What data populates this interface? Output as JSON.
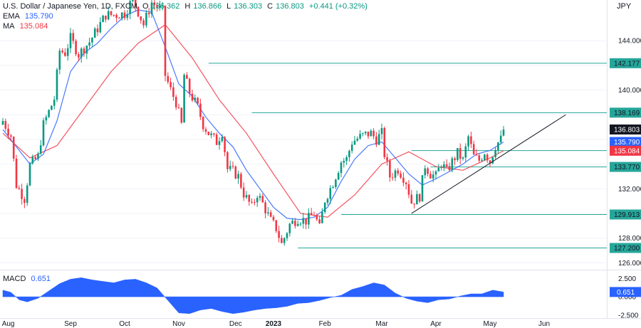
{
  "header": {
    "symbol": "U.S. Dollar / Japanese Yen, 1D, FXCM",
    "ohlc": [
      {
        "k": "O",
        "v": "136.362"
      },
      {
        "k": "H",
        "v": "136.866"
      },
      {
        "k": "L",
        "v": "136.303"
      },
      {
        "k": "C",
        "v": "136.803"
      }
    ],
    "change": "+0.441 (+0.32%)",
    "ema_label": "EMA",
    "ema_value": "135.790",
    "ma_label": "MA",
    "ma_value": "135.084",
    "macd_label": "MACD",
    "macd_value": "0.651",
    "currency": "JPY"
  },
  "colors": {
    "up": "#089981",
    "down": "#f23645",
    "ema": "#2962ff",
    "ma": "#f23645",
    "level": "#26a69a",
    "trend": "#131722",
    "macd": "#2962ff",
    "last": "#131722"
  },
  "chart_data": {
    "type": "candlestick",
    "title": "U.S. Dollar / Japanese Yen, 1D, FXCM",
    "ylim": [
      125.5,
      147.3
    ],
    "yticks": [
      "144.000",
      "142.000",
      "140.000",
      "138.000",
      "136.000",
      "134.000",
      "132.000",
      "130.000",
      "128.000",
      "126.000"
    ],
    "y_grid_labeled": [
      "144.000",
      "140.000",
      "132.000",
      "128.000",
      "126.000"
    ],
    "xticks": [
      "Aug",
      "Sep",
      "Oct",
      "Nov",
      "Dec",
      "2023",
      "Feb",
      "Mar",
      "Apr",
      "May",
      "Jun"
    ],
    "price_series": [
      [
        0,
        137.5
      ],
      [
        3,
        136.3
      ],
      [
        5,
        132.3
      ],
      [
        8,
        131.2
      ],
      [
        10,
        133.9
      ],
      [
        13,
        134.6
      ],
      [
        15,
        137.2
      ],
      [
        19,
        139.3
      ],
      [
        21,
        143.2
      ],
      [
        23,
        143.0
      ],
      [
        25,
        144.2
      ],
      [
        28,
        142.9
      ],
      [
        32,
        143.9
      ],
      [
        38,
        146.1
      ],
      [
        42,
        146.1
      ],
      [
        45,
        146.2
      ],
      [
        48,
        147.4
      ],
      [
        52,
        145.3
      ],
      [
        55,
        147.1
      ],
      [
        59,
        146.4
      ],
      [
        60,
        141.2
      ],
      [
        62,
        140.0
      ],
      [
        64,
        139.0
      ],
      [
        66,
        137.2
      ],
      [
        67,
        141.2
      ],
      [
        69,
        139.8
      ],
      [
        72,
        138.6
      ],
      [
        74,
        137.2
      ],
      [
        76,
        136.5
      ],
      [
        79,
        135.8
      ],
      [
        81,
        136.6
      ],
      [
        83,
        133.6
      ],
      [
        85,
        133.4
      ],
      [
        87,
        133.0
      ],
      [
        89,
        131.6
      ],
      [
        92,
        130.5
      ],
      [
        94,
        131.6
      ],
      [
        96,
        130.8
      ],
      [
        99,
        129.4
      ],
      [
        101,
        128.8
      ],
      [
        103,
        127.5
      ],
      [
        106,
        129.1
      ],
      [
        109,
        129.6
      ],
      [
        112,
        129.4
      ],
      [
        115,
        130.0
      ],
      [
        117,
        128.8
      ],
      [
        119,
        131.1
      ],
      [
        122,
        132.5
      ],
      [
        125,
        134.2
      ],
      [
        127,
        134.4
      ],
      [
        129,
        135.8
      ],
      [
        132,
        136.2
      ],
      [
        134,
        136.4
      ],
      [
        136,
        136.5
      ],
      [
        138,
        136.0
      ],
      [
        140,
        136.5
      ],
      [
        141,
        134.8
      ],
      [
        143,
        133.0
      ],
      [
        146,
        133.6
      ],
      [
        149,
        132.6
      ],
      [
        151,
        130.9
      ],
      [
        154,
        131.4
      ],
      [
        156,
        133.9
      ],
      [
        158,
        133.2
      ],
      [
        160,
        133.0
      ],
      [
        162,
        134.1
      ],
      [
        164,
        133.4
      ],
      [
        166,
        134.2
      ],
      [
        168,
        134.9
      ],
      [
        170,
        134.3
      ],
      [
        172,
        136.2
      ],
      [
        174,
        134.6
      ],
      [
        176,
        134.3
      ],
      [
        178,
        135.0
      ],
      [
        180,
        134.2
      ],
      [
        182,
        135.5
      ],
      [
        184,
        136.0
      ],
      [
        185,
        136.8
      ]
    ],
    "ema_series": [
      [
        0,
        136.8
      ],
      [
        10,
        134.0
      ],
      [
        15,
        134.8
      ],
      [
        20,
        137.5
      ],
      [
        25,
        141.5
      ],
      [
        30,
        143.0
      ],
      [
        35,
        143.8
      ],
      [
        40,
        145.0
      ],
      [
        45,
        146.0
      ],
      [
        50,
        146.5
      ],
      [
        55,
        146.3
      ],
      [
        60,
        143.5
      ],
      [
        65,
        140.5
      ],
      [
        70,
        139.5
      ],
      [
        75,
        137.8
      ],
      [
        80,
        136.5
      ],
      [
        85,
        135.4
      ],
      [
        90,
        133.5
      ],
      [
        95,
        132.0
      ],
      [
        100,
        130.5
      ],
      [
        105,
        129.6
      ],
      [
        110,
        129.5
      ],
      [
        115,
        129.7
      ],
      [
        120,
        130.5
      ],
      [
        125,
        132.6
      ],
      [
        130,
        134.4
      ],
      [
        135,
        135.5
      ],
      [
        140,
        135.8
      ],
      [
        145,
        134.5
      ],
      [
        150,
        133.2
      ],
      [
        155,
        132.3
      ],
      [
        160,
        132.8
      ],
      [
        165,
        133.4
      ],
      [
        170,
        134.0
      ],
      [
        175,
        134.8
      ],
      [
        180,
        135.1
      ],
      [
        185,
        135.79
      ]
    ],
    "ma_series": [
      [
        0,
        136.5
      ],
      [
        10,
        134.5
      ],
      [
        20,
        135.5
      ],
      [
        30,
        138.5
      ],
      [
        40,
        141.5
      ],
      [
        50,
        143.8
      ],
      [
        60,
        145.3
      ],
      [
        70,
        142.6
      ],
      [
        80,
        139.2
      ],
      [
        90,
        136.5
      ],
      [
        100,
        133.2
      ],
      [
        110,
        130.0
      ],
      [
        120,
        129.7
      ],
      [
        130,
        131.5
      ],
      [
        140,
        134.0
      ],
      [
        150,
        135.0
      ],
      [
        160,
        133.8
      ],
      [
        170,
        133.5
      ],
      [
        180,
        134.5
      ],
      [
        185,
        135.08
      ]
    ],
    "levels": [
      {
        "label": "142.177",
        "value": 142.177,
        "from": 76
      },
      {
        "label": "138.169",
        "value": 138.169,
        "from": 92
      },
      {
        "label": "135.096",
        "value": 135.096,
        "from": 151
      },
      {
        "label": "133.770",
        "value": 133.77,
        "from": 158
      },
      {
        "label": "129.913",
        "value": 129.913,
        "from": 125
      },
      {
        "label": "127.200",
        "value": 127.2,
        "from": 109
      }
    ],
    "trendline": {
      "from": [
        151,
        130.0
      ],
      "to": [
        208,
        138.0
      ]
    },
    "last_price": {
      "label": "136.803",
      "value": 136.803
    },
    "ema_last": {
      "label": "135.790",
      "value": 135.79
    },
    "ma_last": {
      "label": "135.084",
      "value": 135.084
    },
    "macd": {
      "ylim": [
        -2.8,
        3.6
      ],
      "yticks": [
        "2.500",
        "0.000",
        "-2.500"
      ],
      "last": {
        "label": "0.651",
        "value": 0.651
      },
      "values": [
        [
          0,
          0.9
        ],
        [
          3,
          0.6
        ],
        [
          6,
          -0.4
        ],
        [
          9,
          -0.7
        ],
        [
          13,
          -0.2
        ],
        [
          17,
          0.8
        ],
        [
          21,
          1.8
        ],
        [
          25,
          2.4
        ],
        [
          29,
          2.6
        ],
        [
          33,
          2.3
        ],
        [
          37,
          2.1
        ],
        [
          41,
          1.9
        ],
        [
          45,
          2.3
        ],
        [
          49,
          2.4
        ],
        [
          53,
          1.9
        ],
        [
          57,
          1.2
        ],
        [
          61,
          -0.5
        ],
        [
          65,
          -2.2
        ],
        [
          69,
          -2.3
        ],
        [
          73,
          -1.8
        ],
        [
          77,
          -1.6
        ],
        [
          81,
          -2.0
        ],
        [
          85,
          -2.3
        ],
        [
          89,
          -2.1
        ],
        [
          93,
          -1.8
        ],
        [
          97,
          -1.6
        ],
        [
          101,
          -1.5
        ],
        [
          105,
          -1.3
        ],
        [
          109,
          -0.9
        ],
        [
          113,
          -0.8
        ],
        [
          117,
          -0.5
        ],
        [
          121,
          -0.1
        ],
        [
          125,
          0.2
        ],
        [
          129,
          1.0
        ],
        [
          133,
          1.4
        ],
        [
          137,
          1.9
        ],
        [
          141,
          1.6
        ],
        [
          145,
          0.5
        ],
        [
          149,
          -0.2
        ],
        [
          153,
          -0.6
        ],
        [
          157,
          -0.8
        ],
        [
          161,
          -0.4
        ],
        [
          165,
          -0.3
        ],
        [
          169,
          0.1
        ],
        [
          173,
          0.4
        ],
        [
          177,
          0.4
        ],
        [
          181,
          0.9
        ],
        [
          185,
          0.65
        ]
      ]
    }
  }
}
